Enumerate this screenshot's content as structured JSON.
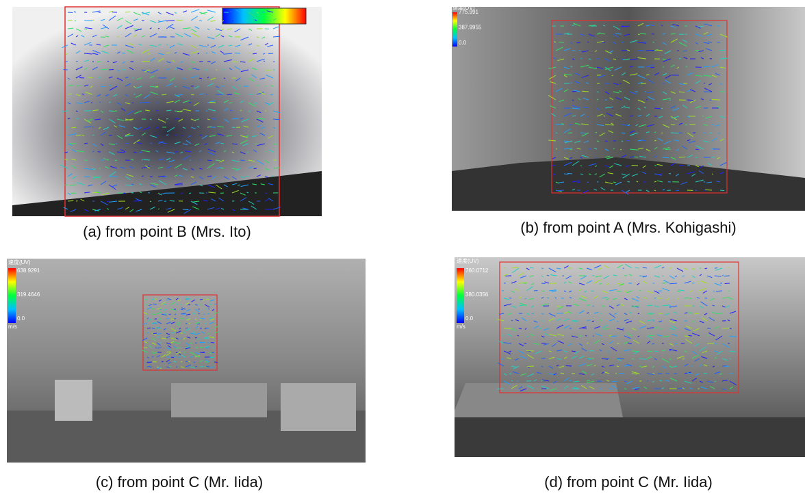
{
  "panels": [
    {
      "caption": "(a) from point B (Mrs. Ito)"
    },
    {
      "caption": "(b) from point A (Mrs. Kohigashi)",
      "legend": {
        "title": "速度(UV)",
        "labels": [
          "775.991",
          "387.9955",
          "0.0"
        ]
      }
    },
    {
      "caption": "(c) from point C (Mr. Iida)",
      "legend": {
        "title": "速度(UV)",
        "labels": [
          "638.9291",
          "319.4646",
          "0.0"
        ],
        "unit": "m/s"
      }
    },
    {
      "caption": "(d) from point C (Mr. Iida)",
      "legend": {
        "title": "速度(UV)",
        "labels": [
          "760.0712",
          "380.0356",
          "0.0"
        ],
        "unit": "m/s"
      }
    }
  ]
}
